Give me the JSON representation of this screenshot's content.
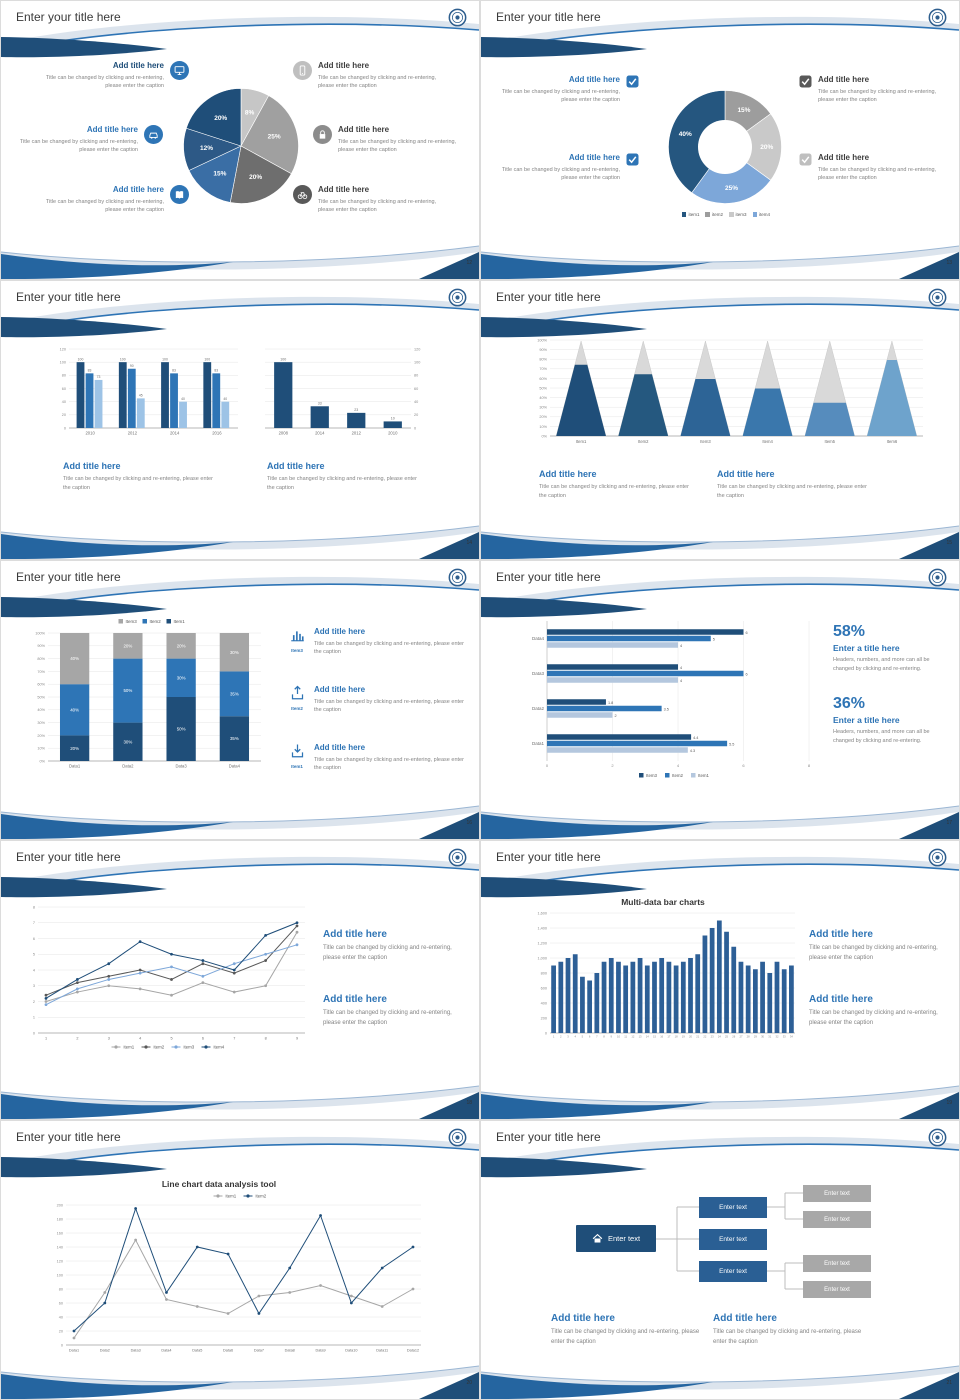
{
  "ui": {
    "slide_title": "Enter your title here",
    "add_title": "Add title here",
    "caption": "Title can be changed by clicking and re-entering, please enter the caption",
    "enter_title": "Enter a title here",
    "stat_caption": "Headers, numbers, and more can all be changed by clicking and re-entering.",
    "enter_text": "Enter text"
  },
  "slides": [
    {
      "page": "12"
    },
    {
      "page": "13"
    },
    {
      "page": "14"
    },
    {
      "page": "15"
    },
    {
      "page": "16"
    },
    {
      "page": "17"
    },
    {
      "page": "18"
    },
    {
      "page": "19"
    },
    {
      "page": "20"
    },
    {
      "page": "21"
    }
  ],
  "slide16": {
    "icon_labels": [
      "Item3",
      "Item2",
      "Item1"
    ]
  },
  "slide17": {
    "stat1": "58%",
    "stat2": "36%"
  },
  "chart_data": [
    {
      "slide": 12,
      "type": "pie",
      "values": [
        8,
        25,
        20,
        15,
        12,
        20
      ],
      "labels": [
        "8%",
        "25%",
        "20%",
        "15%",
        "12%",
        "20%"
      ],
      "colors": [
        "#c6c6c6",
        "#a0a0a0",
        "#6e6e6e",
        "#3a6ea5",
        "#2d5986",
        "#1f4e79"
      ]
    },
    {
      "slide": 13,
      "type": "donut",
      "values": [
        15,
        20,
        25,
        40
      ],
      "labels": [
        "15%",
        "20%",
        "25%",
        "40%"
      ],
      "colors": [
        "#9d9d9d",
        "#c9c9c9",
        "#7da7d9",
        "#25567f"
      ],
      "legend": [
        {
          "label": "item1",
          "color": "#25567f"
        },
        {
          "label": "item2",
          "color": "#9d9d9d"
        },
        {
          "label": "item3",
          "color": "#c9c9c9"
        },
        {
          "label": "item4",
          "color": "#7da7d9"
        }
      ]
    },
    {
      "slide": 14,
      "type": "bar-grouped",
      "categories": [
        "2010",
        "2012",
        "2014",
        "2016"
      ],
      "ylim": [
        0,
        120
      ],
      "ystep": 20,
      "series": [
        {
          "name": "series1",
          "color": "#1f4e79",
          "values": [
            100,
            100,
            100,
            100
          ]
        },
        {
          "name": "series2",
          "color": "#2e75b6",
          "values": [
            83,
            90,
            83,
            83
          ]
        },
        {
          "name": "series3",
          "color": "#9dc3e6",
          "values": [
            73,
            45,
            40,
            40
          ]
        }
      ]
    },
    {
      "slide": 14,
      "type": "bar",
      "categories": [
        "2008",
        "2014",
        "2012",
        "2010"
      ],
      "ylim": [
        0,
        120
      ],
      "ystep": 20,
      "y_axis_side": "right",
      "color": "#1f4e79",
      "values": [
        100,
        33,
        23,
        10
      ]
    },
    {
      "slide": 15,
      "type": "cone",
      "categories": [
        "Item1",
        "Item2",
        "Item3",
        "Item4",
        "Item5",
        "Item6"
      ],
      "ylim": [
        0,
        100
      ],
      "ystep": 10,
      "values": [
        75,
        65,
        60,
        50,
        35,
        80
      ],
      "colors": [
        "#1f4e79",
        "#25587f",
        "#2d6496",
        "#3a77ac",
        "#568cbd",
        "#6ea3cc"
      ],
      "rest_color": "#d9d9d9"
    },
    {
      "slide": 16,
      "type": "stacked-bar-100",
      "categories": [
        "Data1",
        "Data2",
        "Data3",
        "Data4"
      ],
      "ylim": [
        0,
        100
      ],
      "ystep": 10,
      "series": [
        {
          "name": "Item1",
          "color": "#1f4e79",
          "values": [
            20,
            30,
            50,
            35
          ]
        },
        {
          "name": "Item2",
          "color": "#2e75b6",
          "values": [
            40,
            50,
            30,
            35
          ]
        },
        {
          "name": "Item3",
          "color": "#a6a6a6",
          "values": [
            40,
            20,
            20,
            30
          ]
        }
      ],
      "legend_order": [
        "Item3",
        "Item2",
        "Item1"
      ]
    },
    {
      "slide": 17,
      "type": "hbar-grouped",
      "categories": [
        "Data4",
        "Data3",
        "Data2",
        "Data1"
      ],
      "xlim": [
        0,
        8
      ],
      "xstep": 2,
      "series": [
        {
          "name": "Item3",
          "color": "#1f4e79",
          "values": [
            6,
            4,
            1.8,
            4.4
          ]
        },
        {
          "name": "Item2",
          "color": "#2e75b6",
          "values": [
            5,
            6,
            3.5,
            5.5
          ]
        },
        {
          "name": "Item1",
          "color": "#b4c7de",
          "values": [
            4,
            4,
            2,
            4.3
          ]
        }
      ]
    },
    {
      "slide": 18,
      "type": "line",
      "x_labels": [
        "1",
        "2",
        "3",
        "4",
        "5",
        "6",
        "7",
        "8",
        "9"
      ],
      "ylim": [
        0,
        8
      ],
      "ystep": 1,
      "legend_position": "bottom",
      "series": [
        {
          "name": "item1",
          "color": "#a6a6a6",
          "values": [
            2,
            2.6,
            3,
            2.8,
            2.4,
            3.2,
            2.6,
            3,
            6.4
          ]
        },
        {
          "name": "item2",
          "color": "#595959",
          "values": [
            2.4,
            3.2,
            3.6,
            4,
            3.4,
            4.4,
            3.8,
            4.6,
            6.8
          ]
        },
        {
          "name": "item3",
          "color": "#7da7d9",
          "values": [
            1.8,
            2.8,
            3.4,
            3.8,
            4.2,
            3.6,
            4.4,
            5,
            5.6
          ]
        },
        {
          "name": "item4",
          "color": "#1f4e79",
          "values": [
            2.2,
            3.4,
            4.4,
            5.8,
            5,
            4.6,
            4,
            6.2,
            7
          ]
        }
      ]
    },
    {
      "slide": 19,
      "type": "bar-dense",
      "title": "Multi-data bar charts",
      "color": "#2d5f96",
      "ylim": [
        0,
        1600
      ],
      "ystep": 200,
      "ytick_labels": [
        "0",
        "200",
        "400",
        "600",
        "800",
        "1,000",
        "1,200",
        "1,400",
        "1,600"
      ],
      "x_labels": [
        "1",
        "2",
        "3",
        "4",
        "5",
        "6",
        "7",
        "8",
        "9",
        "10",
        "11",
        "12",
        "13",
        "14",
        "15",
        "16",
        "17",
        "18",
        "19",
        "20",
        "21",
        "22",
        "23",
        "24",
        "25",
        "26",
        "27",
        "28",
        "29",
        "30",
        "31",
        "32",
        "33",
        "34"
      ],
      "values": [
        900,
        950,
        1000,
        1050,
        750,
        700,
        800,
        950,
        1000,
        950,
        900,
        950,
        1000,
        900,
        950,
        1000,
        950,
        900,
        950,
        1000,
        1050,
        1300,
        1400,
        1500,
        1350,
        1150,
        950,
        900,
        850,
        950,
        800,
        950,
        850,
        900
      ]
    },
    {
      "slide": 20,
      "type": "line",
      "title": "Line chart data analysis tool",
      "categories": [
        "Data1",
        "Data2",
        "Data3",
        "Data4",
        "Data5",
        "Data6",
        "Data7",
        "Data8",
        "Data9",
        "Data10",
        "Data11",
        "Data12"
      ],
      "ylim": [
        0,
        200
      ],
      "ystep": 20,
      "legend_position": "top",
      "series": [
        {
          "name": "item1",
          "color": "#a6a6a6",
          "values": [
            10,
            75,
            150,
            65,
            55,
            45,
            70,
            75,
            85,
            70,
            55,
            80
          ]
        },
        {
          "name": "item2",
          "color": "#1f4e79",
          "values": [
            20,
            60,
            195,
            75,
            140,
            130,
            45,
            110,
            185,
            60,
            110,
            140
          ]
        }
      ]
    }
  ]
}
